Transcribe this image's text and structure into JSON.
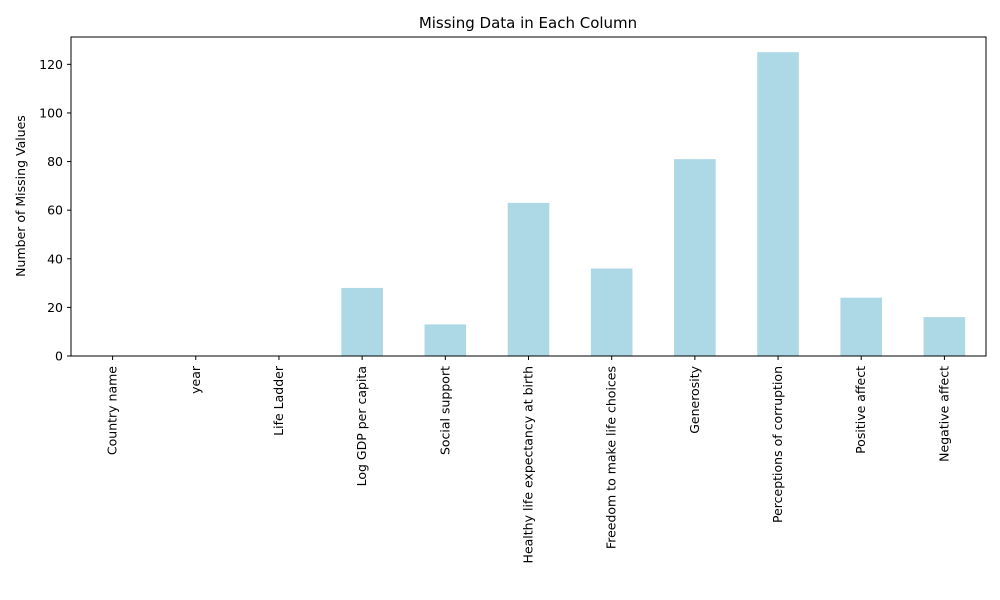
{
  "chart_data": {
    "type": "bar",
    "title": "Missing Data in Each Column",
    "xlabel": "",
    "ylabel": "Number of Missing Values",
    "categories": [
      "Country name",
      "year",
      "Life Ladder",
      "Log GDP per capita",
      "Social support",
      "Healthy life expectancy at birth",
      "Freedom to make life choices",
      "Generosity",
      "Perceptions of corruption",
      "Positive affect",
      "Negative affect"
    ],
    "values": [
      0,
      0,
      0,
      28,
      13,
      63,
      36,
      81,
      125,
      24,
      16
    ],
    "ylim": [
      0,
      131.25
    ],
    "yticks": [
      0,
      20,
      40,
      60,
      80,
      100,
      120
    ],
    "grid": false,
    "bar_color": "#add8e6"
  }
}
